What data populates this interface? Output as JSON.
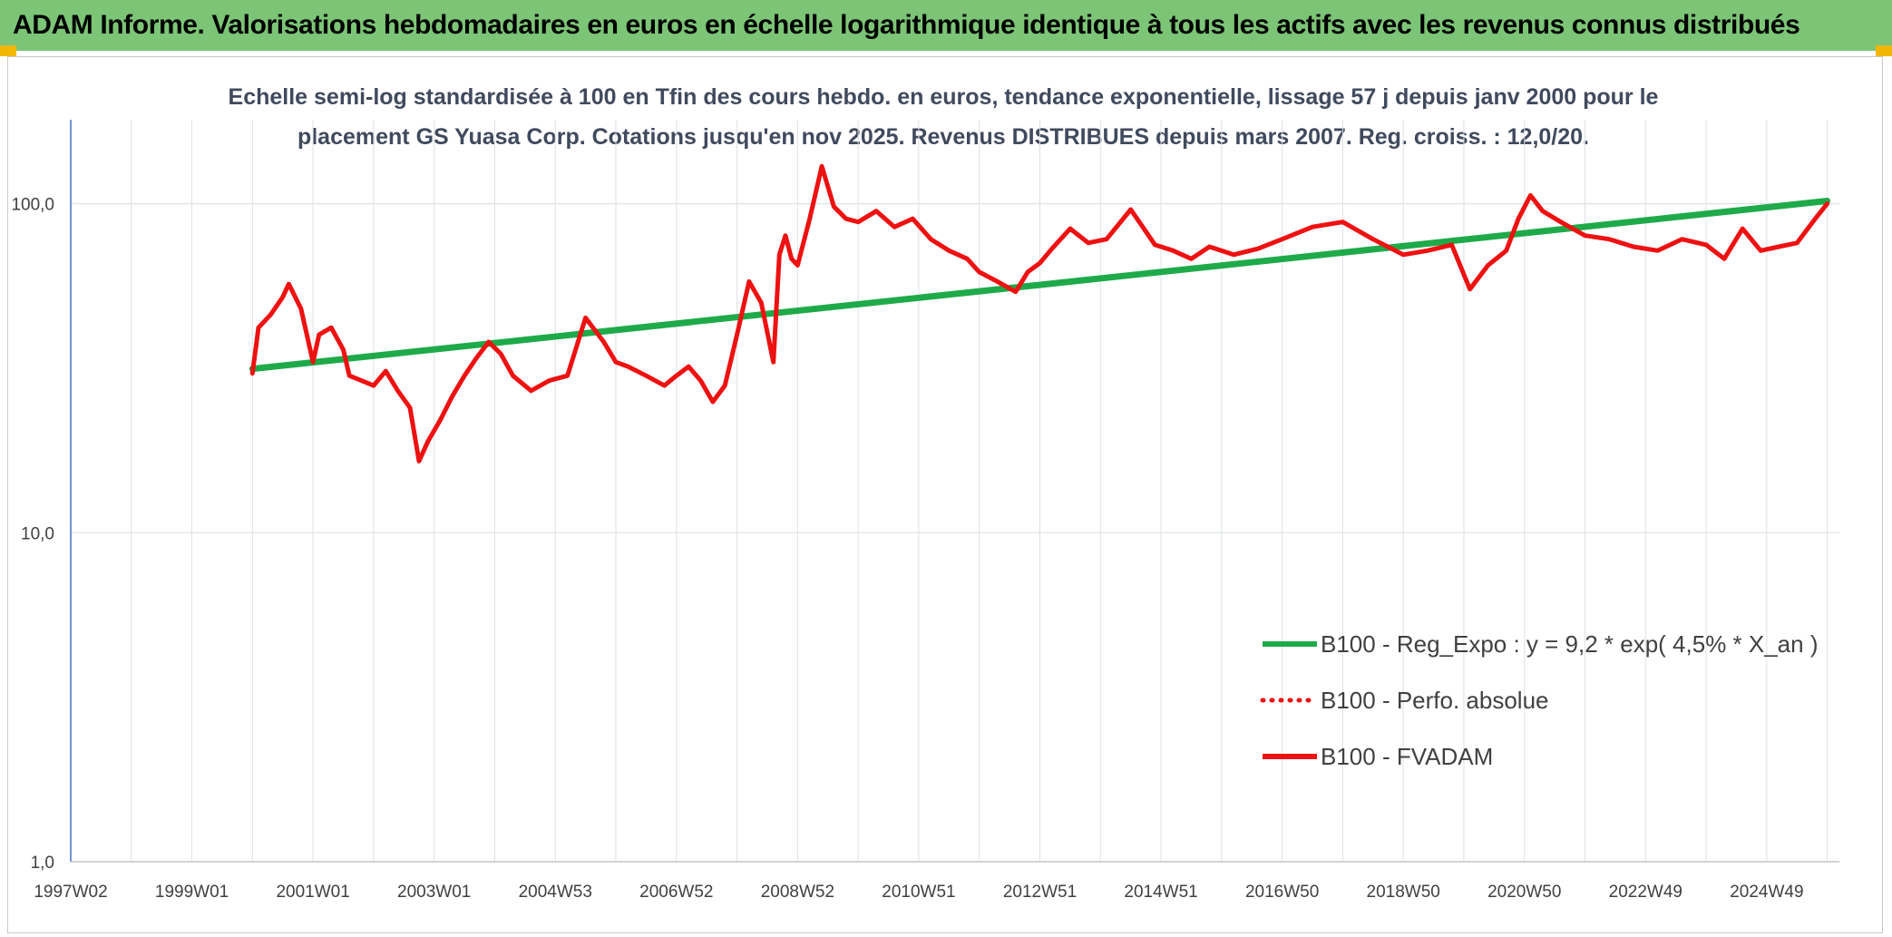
{
  "header": {
    "title": "ADAM Informe. Valorisations hebdomadaires en euros en échelle logarithmique identique à tous les actifs avec les revenus connus distribués"
  },
  "colors": {
    "header_bg": "#7cc576",
    "regression": "#1faa4a",
    "fvadam": "#ee1111",
    "perfo": "#ee1111",
    "grid": "#dde1e6",
    "axis": "#4472c4"
  },
  "chart_data": {
    "type": "line",
    "title_lines": [
      "Echelle semi-log standardisée à 100 en Tfin des cours hebdo. en euros, tendance exponentielle, lissage 57 j depuis janv 2000 pour le",
      "placement GS Yuasa Corp. Cotations jusqu'en nov 2025. Revenus DISTRIBUES depuis mars 2007. Reg. croiss. : 12,0/20."
    ],
    "y_scale": "log",
    "ylim": [
      1,
      180
    ],
    "y_ticks": [
      {
        "value": 1,
        "label": "1,0"
      },
      {
        "value": 10,
        "label": "10,0"
      },
      {
        "value": 100,
        "label": "100,0"
      }
    ],
    "xlim": [
      1997.0,
      2026.2
    ],
    "x_ticks": [
      {
        "value": 1997.0,
        "label": "1997W02"
      },
      {
        "value": 1999.0,
        "label": "1999W01"
      },
      {
        "value": 2001.0,
        "label": "2001W01"
      },
      {
        "value": 2003.0,
        "label": "2003W01"
      },
      {
        "value": 2005.0,
        "label": "2004W53"
      },
      {
        "value": 2007.0,
        "label": "2006W52"
      },
      {
        "value": 2009.0,
        "label": "2008W52"
      },
      {
        "value": 2011.0,
        "label": "2010W51"
      },
      {
        "value": 2013.0,
        "label": "2012W51"
      },
      {
        "value": 2015.0,
        "label": "2014W51"
      },
      {
        "value": 2017.0,
        "label": "2016W50"
      },
      {
        "value": 2019.0,
        "label": "2018W50"
      },
      {
        "value": 2021.0,
        "label": "2020W50"
      },
      {
        "value": 2023.0,
        "label": "2022W49"
      },
      {
        "value": 2025.0,
        "label": "2024W49"
      }
    ],
    "minor_grid_step": 1,
    "grid": true,
    "legend_placement": "bottom-right",
    "series": [
      {
        "name": "B100 - Reg_Expo : y = 9,2 * exp( 4,5% *  X_an )",
        "style": "solid",
        "color": "#1faa4a",
        "x": [
          2000.0,
          2026.0
        ],
        "y": [
          31.5,
          102.0
        ]
      },
      {
        "name": "B100 - Perfo. absolue",
        "style": "dotted",
        "color": "#ee1111",
        "x": [],
        "y": []
      },
      {
        "name": "B100 - FVADAM",
        "style": "solid",
        "color": "#ee1111",
        "x": [
          2000.0,
          2000.1,
          2000.3,
          2000.5,
          2000.6,
          2000.8,
          2001.0,
          2001.1,
          2001.3,
          2001.5,
          2001.6,
          2001.8,
          2002.0,
          2002.2,
          2002.4,
          2002.6,
          2002.75,
          2002.9,
          2003.1,
          2003.3,
          2003.5,
          2003.7,
          2003.9,
          2004.1,
          2004.3,
          2004.6,
          2004.9,
          2005.2,
          2005.5,
          2005.8,
          2006.0,
          2006.2,
          2006.5,
          2006.8,
          2007.0,
          2007.2,
          2007.4,
          2007.6,
          2007.8,
          2008.0,
          2008.2,
          2008.4,
          2008.6,
          2008.7,
          2008.8,
          2008.9,
          2009.0,
          2009.2,
          2009.4,
          2009.6,
          2009.8,
          2010.0,
          2010.3,
          2010.6,
          2010.9,
          2011.2,
          2011.5,
          2011.8,
          2012.0,
          2012.3,
          2012.6,
          2012.8,
          2013.0,
          2013.2,
          2013.5,
          2013.8,
          2014.1,
          2014.5,
          2014.9,
          2015.2,
          2015.5,
          2015.8,
          2016.2,
          2016.6,
          2017.0,
          2017.5,
          2018.0,
          2018.5,
          2019.0,
          2019.4,
          2019.8,
          2020.1,
          2020.4,
          2020.7,
          2020.9,
          2021.1,
          2021.3,
          2021.6,
          2022.0,
          2022.4,
          2022.8,
          2023.2,
          2023.6,
          2024.0,
          2024.3,
          2024.6,
          2024.9,
          2025.2,
          2025.5,
          2025.8,
          2026.0
        ],
        "y": [
          30.5,
          42.0,
          46.0,
          52.0,
          57.0,
          48.0,
          33.0,
          40.0,
          42.0,
          36.0,
          30.0,
          29.0,
          28.0,
          31.0,
          27.0,
          24.0,
          16.5,
          19.0,
          22.0,
          26.0,
          30.0,
          34.0,
          38.0,
          35.0,
          30.0,
          27.0,
          29.0,
          30.0,
          45.0,
          38.0,
          33.0,
          32.0,
          30.0,
          28.0,
          30.0,
          32.0,
          29.0,
          25.0,
          28.0,
          40.0,
          58.0,
          50.0,
          33.0,
          70.0,
          80.0,
          68.0,
          65.0,
          90.0,
          130.0,
          98.0,
          90.0,
          88.0,
          95.0,
          85.0,
          90.0,
          78.0,
          72.0,
          68.0,
          62.0,
          58.0,
          54.0,
          62.0,
          66.0,
          73.0,
          84.0,
          76.0,
          78.0,
          96.0,
          75.0,
          72.0,
          68.0,
          74.0,
          70.0,
          73.0,
          78.0,
          85.0,
          88.0,
          78.0,
          70.0,
          72.0,
          75.0,
          55.0,
          65.0,
          72.0,
          90.0,
          106.0,
          95.0,
          88.0,
          80.0,
          78.0,
          74.0,
          72.0,
          78.0,
          75.0,
          68.0,
          84.0,
          72.0,
          74.0,
          76.0,
          90.0,
          100.0
        ]
      }
    ]
  }
}
